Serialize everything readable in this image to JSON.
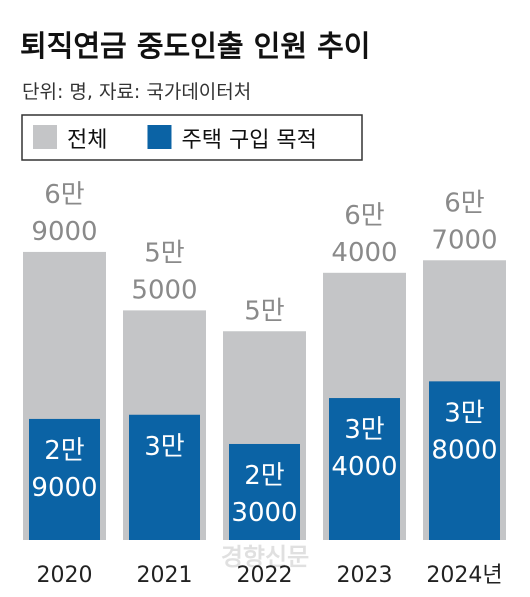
{
  "chart_data": {
    "type": "bar",
    "title": "퇴직연금 중도인출 인원 추이",
    "subtitle": "단위: 명, 자료: 국가데이터처",
    "categories": [
      "2020",
      "2021",
      "2022",
      "2023",
      "2024년"
    ],
    "series": [
      {
        "name": "전체",
        "color": "#c4c5c7",
        "values": [
          69000,
          55000,
          50000,
          64000,
          67000
        ],
        "value_labels": [
          "6만 9000",
          "5만 5000",
          "5만",
          "6만 4000",
          "6만 7000"
        ]
      },
      {
        "name": "주택 구입 목적",
        "color": "#0b63a5",
        "values": [
          29000,
          30000,
          23000,
          34000,
          38000
        ],
        "value_labels": [
          "2만 9000",
          "3만",
          "2만 3000",
          "3만 4000",
          "3만 8000"
        ]
      }
    ]
  },
  "watermark": "경향신문"
}
